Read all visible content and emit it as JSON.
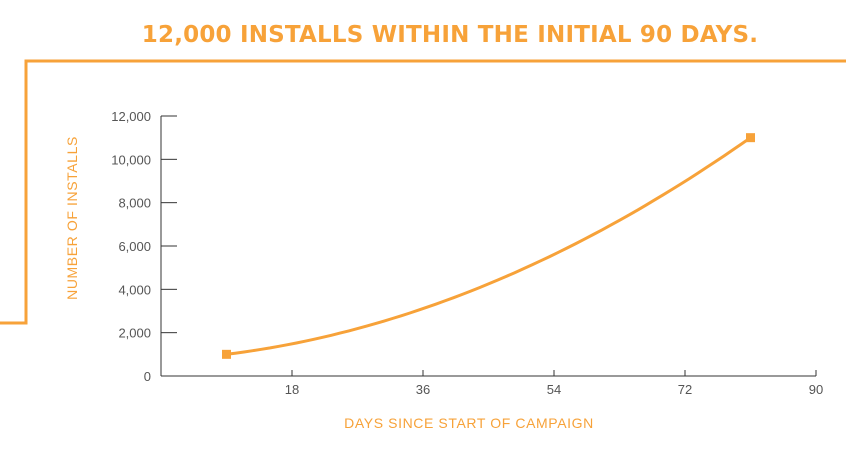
{
  "title": "12,000 INSTALLS WITHIN THE INITIAL 90 DAYS.",
  "colors": {
    "accent": "#f7a239",
    "axis": "#333333",
    "tick_text": "#555555"
  },
  "chart_data": {
    "type": "line",
    "title": "12,000 INSTALLS WITHIN THE INITIAL 90 DAYS.",
    "xlabel": "DAYS SINCE START OF CAMPAIGN",
    "ylabel": "NUMBER OF INSTALLS",
    "xlim": [
      0,
      90
    ],
    "ylim": [
      0,
      12000
    ],
    "x_ticks": [
      18,
      36,
      54,
      72,
      90
    ],
    "x_tick_labels": [
      "18",
      "36",
      "54",
      "72",
      "90"
    ],
    "y_ticks": [
      0,
      2000,
      4000,
      6000,
      8000,
      10000,
      12000
    ],
    "y_tick_labels": [
      "0",
      "2,000",
      "4,000",
      "6,000",
      "8,000",
      "10,000",
      "12,000"
    ],
    "grid": false,
    "series": [
      {
        "x": [
          9,
          81
        ],
        "y": [
          1000,
          11000
        ]
      }
    ]
  }
}
